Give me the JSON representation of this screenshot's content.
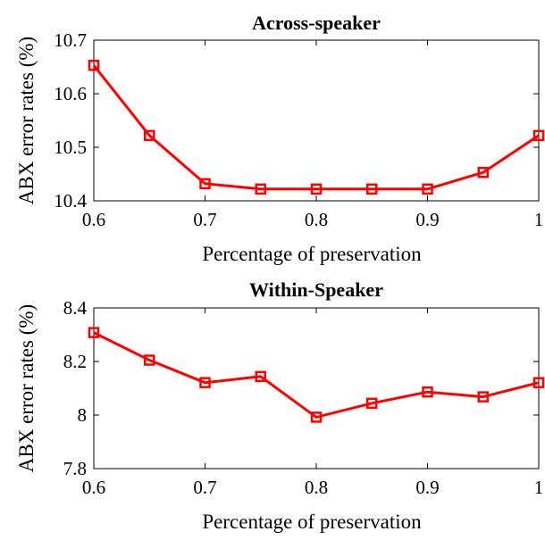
{
  "chart_data": [
    {
      "type": "line",
      "title": "Across-speaker",
      "xlabel": "Percentage of preservation",
      "ylabel": "ABX error rates (%)",
      "xlim": [
        0.6,
        1.0
      ],
      "ylim": [
        10.4,
        10.7
      ],
      "xticks": [
        "0.6",
        "0.7",
        "0.8",
        "0.9",
        "1"
      ],
      "yticks": [
        "10.4",
        "10.5",
        "10.6",
        "10.7"
      ],
      "xtick_values": [
        0.6,
        0.7,
        0.8,
        0.9,
        1.0
      ],
      "ytick_values": [
        10.4,
        10.5,
        10.6,
        10.7
      ],
      "grid": false,
      "series": [
        {
          "color": "#ff0000",
          "marker": "square",
          "x": [
            0.6,
            0.65,
            0.7,
            0.75,
            0.8,
            0.85,
            0.9,
            0.95,
            1.0
          ],
          "y": [
            10.653,
            10.522,
            10.432,
            10.422,
            10.422,
            10.422,
            10.422,
            10.453,
            10.522
          ]
        }
      ]
    },
    {
      "type": "line",
      "title": "Within-Speaker",
      "xlabel": "Percentage of preservation",
      "ylabel": "ABX error rates (%)",
      "xlim": [
        0.6,
        1.0
      ],
      "ylim": [
        7.8,
        8.4
      ],
      "xticks": [
        "0.6",
        "0.7",
        "0.8",
        "0.9",
        "1"
      ],
      "yticks": [
        "7.8",
        "8",
        "8.2",
        "8.4"
      ],
      "xtick_values": [
        0.6,
        0.7,
        0.8,
        0.9,
        1.0
      ],
      "ytick_values": [
        7.8,
        8.0,
        8.2,
        8.4
      ],
      "grid": false,
      "series": [
        {
          "color": "#ff0000",
          "marker": "square",
          "x": [
            0.6,
            0.65,
            0.7,
            0.75,
            0.8,
            0.85,
            0.9,
            0.95,
            1.0
          ],
          "y": [
            8.308,
            8.205,
            8.121,
            8.144,
            7.992,
            8.044,
            8.086,
            8.068,
            8.121
          ]
        }
      ]
    }
  ]
}
